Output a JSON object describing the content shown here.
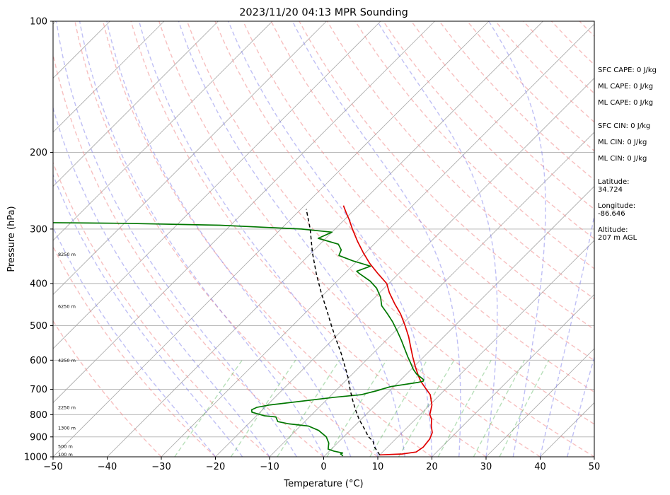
{
  "chart_data": {
    "type": "line",
    "title": "2023/11/20 04:13 MPR Sounding",
    "xlabel": "Temperature (°C)",
    "ylabel": "Pressure (hPa)",
    "xlim": [
      -50,
      50
    ],
    "ylim": [
      1000,
      100
    ],
    "y_scale": "log",
    "skew": "skew-T",
    "grid": true,
    "x_ticks": [
      -50,
      -40,
      -30,
      -20,
      -10,
      0,
      10,
      20,
      30,
      40,
      50
    ],
    "y_ticks": [
      1000,
      900,
      800,
      700,
      600,
      500,
      400,
      300,
      200,
      100
    ],
    "series": [
      {
        "color": "#e00000",
        "points": [
          [
            10,
            990
          ],
          [
            14,
            985
          ],
          [
            16.2,
            975
          ],
          [
            16.6,
            950
          ],
          [
            16.3,
            910
          ],
          [
            15.6,
            880
          ],
          [
            14.2,
            850
          ],
          [
            13.0,
            820
          ],
          [
            11.8,
            800
          ],
          [
            10.4,
            760
          ],
          [
            8.2,
            720
          ],
          [
            6.5,
            700
          ],
          [
            5.2,
            685
          ],
          [
            3.9,
            670
          ],
          [
            2.4,
            650
          ],
          [
            0.2,
            620
          ],
          [
            -2.0,
            590
          ],
          [
            -4.2,
            560
          ],
          [
            -6.5,
            530
          ],
          [
            -9.2,
            500
          ],
          [
            -12.2,
            470
          ],
          [
            -15.2,
            445
          ],
          [
            -18.2,
            420
          ],
          [
            -20.4,
            400
          ],
          [
            -23.8,
            380
          ],
          [
            -27.2,
            360
          ],
          [
            -30.4,
            340
          ],
          [
            -33.6,
            320
          ],
          [
            -36.8,
            300
          ],
          [
            -39.2,
            285
          ],
          [
            -41.0,
            275
          ],
          [
            -42.8,
            265
          ]
        ]
      },
      {
        "color": "#007700",
        "points": [
          [
            3.4,
            995
          ],
          [
            2.6,
            985
          ],
          [
            2.8,
            980
          ],
          [
            0.8,
            970
          ],
          [
            -0.6,
            960
          ],
          [
            -1.6,
            930
          ],
          [
            -3.2,
            900
          ],
          [
            -5.8,
            870
          ],
          [
            -8.5,
            850
          ],
          [
            -12.5,
            840
          ],
          [
            -15.0,
            830
          ],
          [
            -15.6,
            820
          ],
          [
            -16.2,
            810
          ],
          [
            -18.5,
            805
          ],
          [
            -19.5,
            800
          ],
          [
            -21.5,
            790
          ],
          [
            -22.0,
            780
          ],
          [
            -21.5,
            770
          ],
          [
            -19.5,
            760
          ],
          [
            -9.0,
            730
          ],
          [
            -4.5,
            720
          ],
          [
            -2.4,
            705
          ],
          [
            -0.6,
            690
          ],
          [
            3.6,
            675
          ],
          [
            4.4,
            670
          ],
          [
            4.2,
            665
          ],
          [
            3.0,
            655
          ],
          [
            1.8,
            645
          ],
          [
            0.4,
            630
          ],
          [
            -1.2,
            610
          ],
          [
            -2.9,
            590
          ],
          [
            -5.0,
            565
          ],
          [
            -7.2,
            540
          ],
          [
            -9.6,
            515
          ],
          [
            -12.2,
            490
          ],
          [
            -14.6,
            470
          ],
          [
            -17.2,
            450
          ],
          [
            -19.0,
            430
          ],
          [
            -21.4,
            410
          ],
          [
            -23.9,
            395
          ],
          [
            -27.2,
            380
          ],
          [
            -28.2,
            375
          ],
          [
            -26.6,
            365
          ],
          [
            -30.8,
            355
          ],
          [
            -34.4,
            345
          ],
          [
            -35.0,
            335
          ],
          [
            -36.6,
            325
          ],
          [
            -41.4,
            315
          ],
          [
            -40.0,
            305
          ],
          [
            -46.2,
            300
          ],
          [
            -62.0,
            294
          ],
          [
            -80.0,
            291
          ],
          [
            -95.0,
            290
          ]
        ]
      },
      {
        "color": "#000000",
        "style": "dashed",
        "points": [
          [
            10,
            990
          ],
          [
            7.6,
            950
          ],
          [
            6.2,
            920
          ],
          [
            4.6,
            900
          ],
          [
            2.2,
            860
          ],
          [
            -0.4,
            820
          ],
          [
            -2.8,
            780
          ],
          [
            -5.2,
            740
          ],
          [
            -7.6,
            700
          ],
          [
            -10.0,
            660
          ],
          [
            -12.8,
            620
          ],
          [
            -15.8,
            580
          ],
          [
            -19.2,
            540
          ],
          [
            -22.8,
            500
          ],
          [
            -26.6,
            460
          ],
          [
            -30.8,
            420
          ],
          [
            -35.2,
            380
          ],
          [
            -39.8,
            340
          ],
          [
            -44.6,
            300
          ],
          [
            -49.0,
            270
          ]
        ]
      }
    ],
    "height_labels": [
      {
        "text": "100 m",
        "p": 1000
      },
      {
        "text": "500 m",
        "p": 958
      },
      {
        "text": "1300 m",
        "p": 870
      },
      {
        "text": "2250 m",
        "p": 780
      },
      {
        "text": "4250 m",
        "p": 608
      },
      {
        "text": "6250 m",
        "p": 457
      },
      {
        "text": "8250 m",
        "p": 347
      }
    ]
  },
  "stats": [
    {
      "text": "SFC CAPE: 0 J/kg",
      "gap": 0
    },
    {
      "text": "ML CAPE: 0 J/kg",
      "gap": 0
    },
    {
      "text": "ML CAPE: 0 J/kg",
      "gap": 0
    },
    {
      "text": "SFC CIN: 0 J/kg",
      "gap": 1
    },
    {
      "text": "ML CIN: 0 J/kg",
      "gap": 0
    },
    {
      "text": "ML CIN: 0 J/kg",
      "gap": 0
    },
    {
      "text": "Latitude:",
      "gap": 1
    },
    {
      "text": "34.724",
      "gap": -1
    },
    {
      "text": "Longitude:",
      "gap": 0
    },
    {
      "text": "-86.646",
      "gap": -1
    },
    {
      "text": "Altitude:",
      "gap": 0
    },
    {
      "text": "207 m AGL",
      "gap": -1
    }
  ]
}
